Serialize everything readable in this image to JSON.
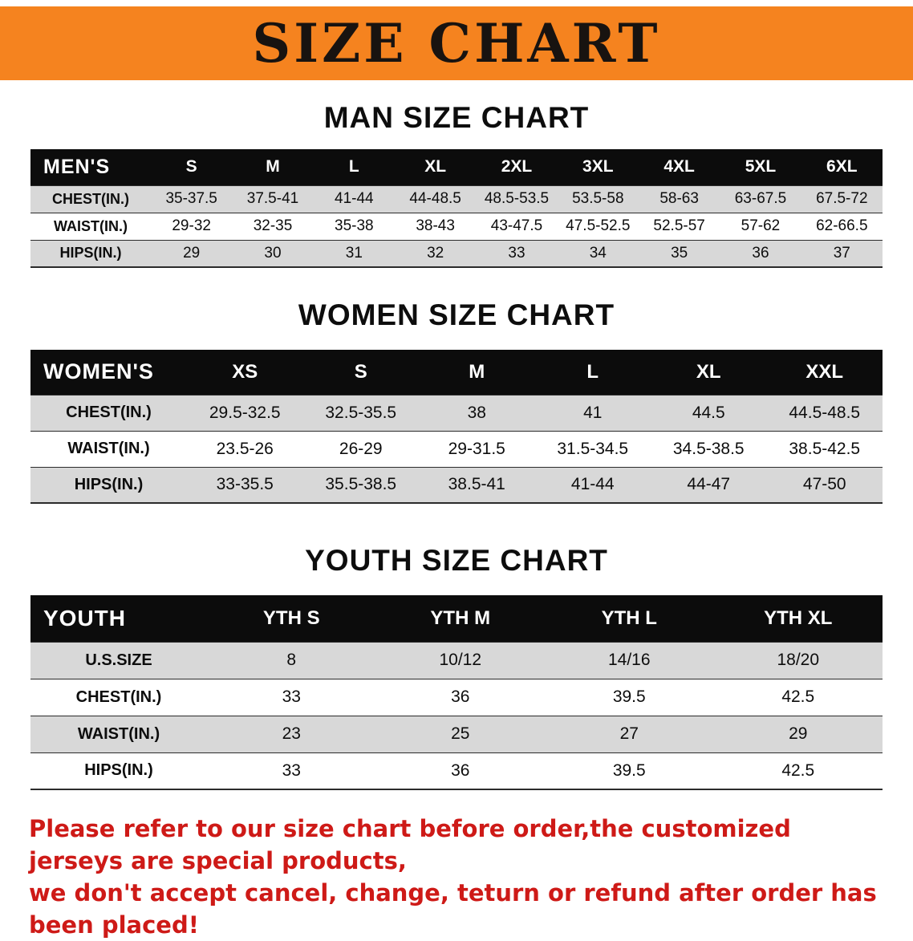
{
  "banner": {
    "title": "SIZE CHART"
  },
  "colors": {
    "banner_bg": "#f5831f",
    "banner_text": "#181310",
    "table_header_bg": "#0c0c0c",
    "table_header_text": "#ffffff",
    "shaded_row_bg": "#d8d8d8",
    "disclaimer_text": "#ce1a17"
  },
  "sections": [
    {
      "heading": "MAN SIZE CHART",
      "table": {
        "header_label": "MEN'S",
        "columns": [
          "S",
          "M",
          "L",
          "XL",
          "2XL",
          "3XL",
          "4XL",
          "5XL",
          "6XL"
        ],
        "rows": [
          {
            "label": "CHEST(IN.)",
            "values": [
              "35-37.5",
              "37.5-41",
              "41-44",
              "44-48.5",
              "48.5-53.5",
              "53.5-58",
              "58-63",
              "63-67.5",
              "67.5-72"
            ]
          },
          {
            "label": "WAIST(IN.)",
            "values": [
              "29-32",
              "32-35",
              "35-38",
              "38-43",
              "43-47.5",
              "47.5-52.5",
              "52.5-57",
              "57-62",
              "62-66.5"
            ]
          },
          {
            "label": "HIPS(IN.)",
            "values": [
              "29",
              "30",
              "31",
              "32",
              "33",
              "34",
              "35",
              "36",
              "37"
            ]
          }
        ]
      }
    },
    {
      "heading": "WOMEN SIZE CHART",
      "table": {
        "header_label": "WOMEN'S",
        "columns": [
          "XS",
          "S",
          "M",
          "L",
          "XL",
          "XXL"
        ],
        "rows": [
          {
            "label": "CHEST(IN.)",
            "values": [
              "29.5-32.5",
              "32.5-35.5",
              "38",
              "41",
              "44.5",
              "44.5-48.5"
            ]
          },
          {
            "label": "WAIST(IN.)",
            "values": [
              "23.5-26",
              "26-29",
              "29-31.5",
              "31.5-34.5",
              "34.5-38.5",
              "38.5-42.5"
            ]
          },
          {
            "label": "HIPS(IN.)",
            "values": [
              "33-35.5",
              "35.5-38.5",
              "38.5-41",
              "41-44",
              "44-47",
              "47-50"
            ]
          }
        ]
      }
    },
    {
      "heading": "YOUTH SIZE CHART",
      "table": {
        "header_label": "YOUTH",
        "columns": [
          "YTH S",
          "YTH M",
          "YTH L",
          "YTH XL"
        ],
        "rows": [
          {
            "label": "U.S.SIZE",
            "values": [
              "8",
              "10/12",
              "14/16",
              "18/20"
            ]
          },
          {
            "label": "CHEST(IN.)",
            "values": [
              "33",
              "36",
              "39.5",
              "42.5"
            ]
          },
          {
            "label": "WAIST(IN.)",
            "values": [
              "23",
              "25",
              "27",
              "29"
            ]
          },
          {
            "label": "HIPS(IN.)",
            "values": [
              "33",
              "36",
              "39.5",
              "42.5"
            ]
          }
        ]
      }
    }
  ],
  "disclaimer": {
    "line1": "Please refer to our size chart before order,the customized jerseys are special products,",
    "line2": "we don't accept cancel, change, teturn or refund after order has been placed!"
  }
}
